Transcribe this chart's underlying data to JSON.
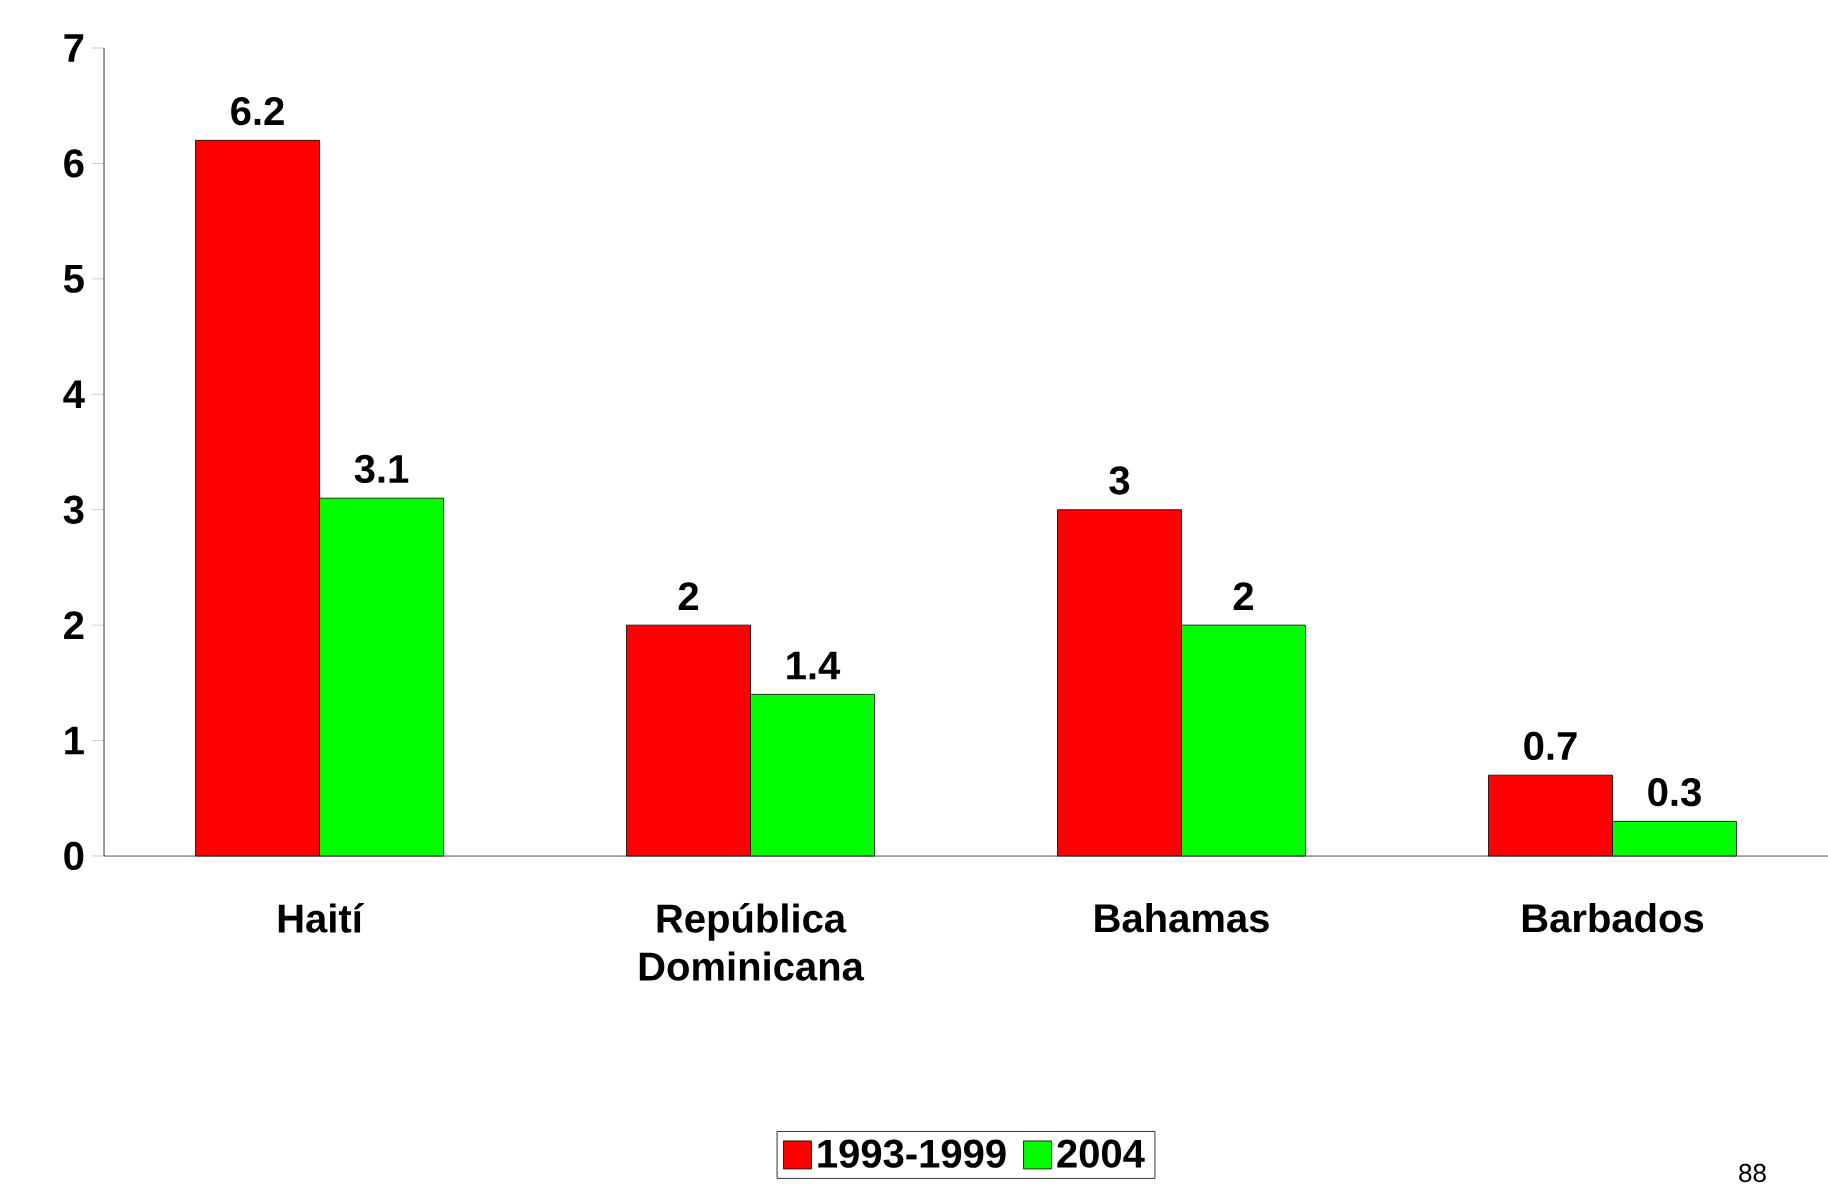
{
  "chart_data": {
    "type": "bar",
    "categories": [
      "Haití",
      "República Dominicana",
      "Bahamas",
      "Barbados"
    ],
    "series": [
      {
        "name": "1993-1999",
        "color": "#ff0000",
        "values": [
          6.2,
          2,
          3,
          0.7
        ]
      },
      {
        "name": "2004",
        "color": "#00ff00",
        "values": [
          3.1,
          1.4,
          2,
          0.3
        ]
      }
    ],
    "ylim": [
      0,
      7
    ],
    "yticks": [
      0,
      1,
      2,
      3,
      4,
      5,
      6,
      7
    ],
    "grid": false,
    "legend": "bottom",
    "data_labels": true,
    "annotations": [
      "88"
    ]
  }
}
